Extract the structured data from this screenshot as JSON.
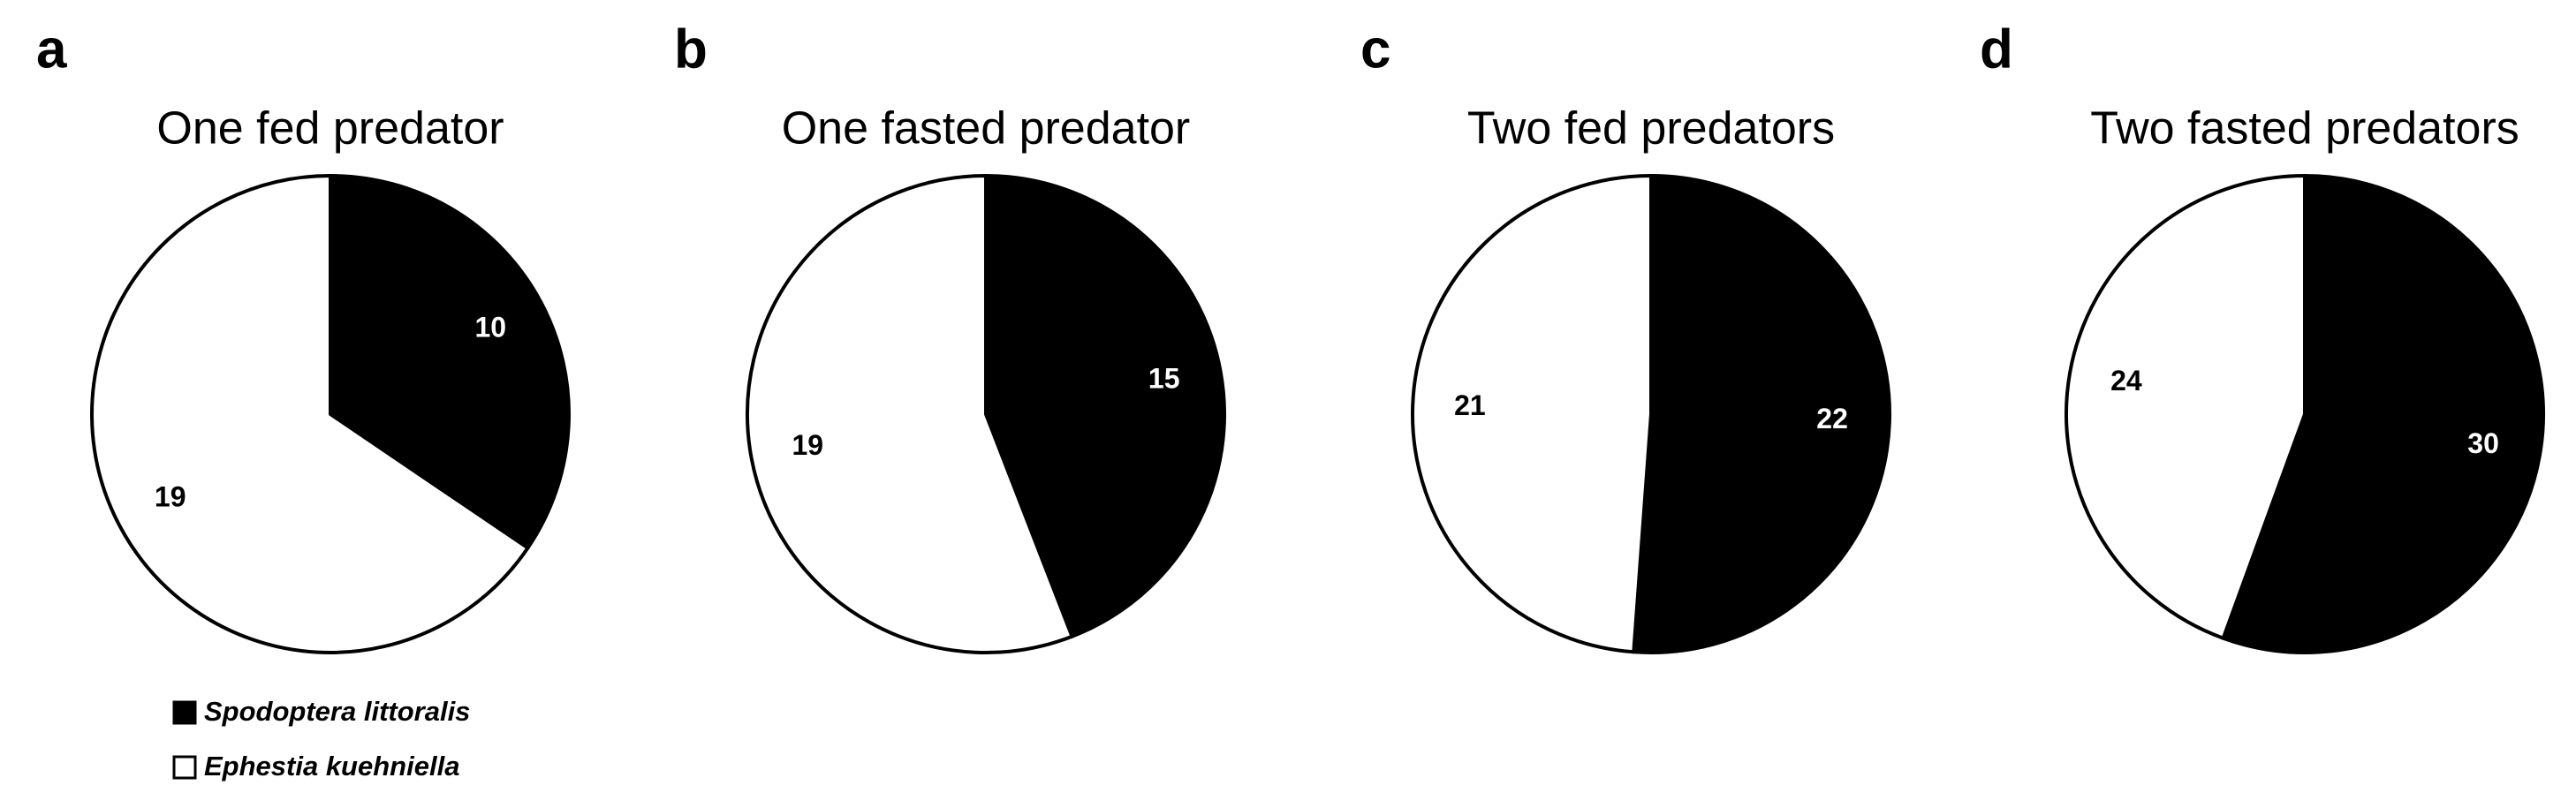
{
  "chart_data": [
    {
      "type": "pie",
      "panel": "a",
      "title": "One fed predator",
      "categories": [
        "Spodoptera littoralis",
        "Ephestia kuehniella"
      ],
      "values": [
        10,
        19
      ],
      "colors": [
        "#000000",
        "#ffffff"
      ]
    },
    {
      "type": "pie",
      "panel": "b",
      "title": "One fasted predator",
      "categories": [
        "Spodoptera littoralis",
        "Ephestia kuehniella"
      ],
      "values": [
        15,
        19
      ],
      "colors": [
        "#000000",
        "#ffffff"
      ]
    },
    {
      "type": "pie",
      "panel": "c",
      "title": "Two fed predators",
      "categories": [
        "Spodoptera littoralis",
        "Ephestia kuehniella"
      ],
      "values": [
        22,
        21
      ],
      "colors": [
        "#000000",
        "#ffffff"
      ]
    },
    {
      "type": "pie",
      "panel": "d",
      "title": "Two fasted predators",
      "categories": [
        "Spodoptera littoralis",
        "Ephestia kuehniella"
      ],
      "values": [
        30,
        24
      ],
      "colors": [
        "#000000",
        "#ffffff"
      ]
    }
  ]
}
